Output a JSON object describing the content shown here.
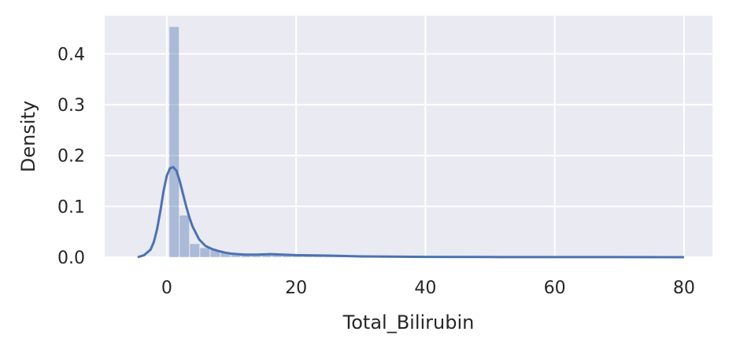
{
  "chart_data": {
    "type": "histogram",
    "title": "",
    "xlabel": "Total_Bilirubin",
    "ylabel": "Density",
    "xlim": [
      -9.6,
      84.4
    ],
    "ylim": [
      0,
      0.475
    ],
    "xticks": [
      0,
      20,
      40,
      60,
      80
    ],
    "xtick_labels": [
      "0",
      "20",
      "40",
      "60",
      "80"
    ],
    "yticks": [
      0.0,
      0.1,
      0.2,
      0.3,
      0.4
    ],
    "ytick_labels": [
      "0.0",
      "0.1",
      "0.2",
      "0.3",
      "0.4"
    ],
    "grid": true,
    "background": "#EAEAF2",
    "bar_color": "#4C72B0",
    "bar_opacity": 0.4,
    "line_color": "#4C72B0",
    "bins": {
      "edges": [
        0.4,
        1.99,
        3.58,
        5.17,
        6.76,
        8.35,
        9.94,
        11.53,
        13.12,
        14.71,
        16.3,
        17.89,
        19.48,
        21.07,
        22.66,
        24.25,
        25.84,
        27.43,
        29.02,
        30.61,
        32.2,
        33.79,
        35.38,
        36.97,
        38.56,
        40.15,
        41.74,
        43.33,
        44.92,
        46.51,
        48.1,
        49.69,
        51.28,
        52.87,
        54.46,
        56.05,
        57.64,
        59.23,
        60.82,
        62.41,
        64.0,
        65.59,
        67.18,
        68.77,
        70.36,
        71.95,
        73.54,
        75.13,
        76.72,
        78.31,
        79.9
      ],
      "density": [
        0.453,
        0.082,
        0.026,
        0.018,
        0.014,
        0.009,
        0.005,
        0.004,
        0.003,
        0.004,
        0.004,
        0.003,
        0.003,
        0.002,
        0.0015,
        0.001,
        0.001,
        0.0005,
        0.0005,
        0.0004,
        0.0003,
        0.0003,
        0.0002,
        0.0002,
        0.0002,
        0.0002,
        0.0001,
        0.0001,
        0.0001,
        0.0001,
        0.0001,
        0.0001,
        0.0001,
        0.0001,
        0.0001,
        0.0001,
        0.0001,
        0.0001,
        0.0001,
        0.0001,
        0.0001,
        0.0001,
        0.0001,
        0.0001,
        0.0001,
        0.0001,
        0.0001,
        0.0001,
        0.0001,
        0.0001
      ]
    },
    "kde": {
      "x": [
        -4.5,
        -3.5,
        -2.5,
        -2.0,
        -1.5,
        -1.0,
        -0.5,
        0.0,
        0.5,
        1.0,
        1.5,
        2.0,
        2.5,
        3.0,
        3.5,
        4.0,
        5.0,
        6.0,
        7.0,
        8.0,
        9.0,
        10.0,
        12.0,
        14.0,
        16.0,
        18.0,
        20.0,
        25.0,
        30.0,
        40.0,
        50.0,
        60.0,
        70.0,
        80.0
      ],
      "y": [
        0.0,
        0.004,
        0.015,
        0.03,
        0.055,
        0.09,
        0.13,
        0.16,
        0.175,
        0.177,
        0.17,
        0.15,
        0.125,
        0.1,
        0.078,
        0.06,
        0.035,
        0.022,
        0.016,
        0.012,
        0.009,
        0.007,
        0.005,
        0.005,
        0.006,
        0.005,
        0.004,
        0.003,
        0.0015,
        0.0005,
        0.0003,
        0.0002,
        0.0002,
        0.0001
      ]
    }
  }
}
